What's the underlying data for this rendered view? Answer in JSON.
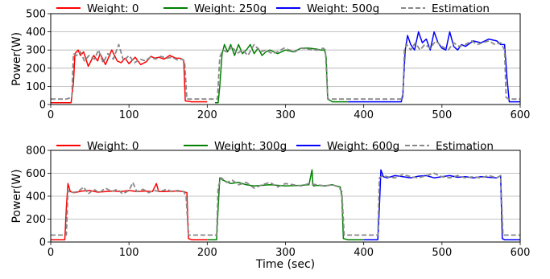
{
  "chart_data": [
    {
      "type": "line",
      "ylabel": "Power(W)",
      "xlabel": "",
      "xlim": [
        0,
        600
      ],
      "ylim": [
        0,
        500
      ],
      "xticks": [
        "0",
        "100",
        "200",
        "300",
        "400",
        "500",
        "600"
      ],
      "yticks": [
        "0",
        "100",
        "200",
        "300",
        "400",
        "500"
      ],
      "grid": "horizontal",
      "legend_position": "top",
      "series": [
        {
          "name": "Weight: 0",
          "color": "#ff0000",
          "style": "solid",
          "x": [
            0,
            26,
            29,
            31,
            35,
            38,
            42,
            48,
            55,
            60,
            63,
            70,
            78,
            85,
            90,
            95,
            100,
            108,
            115,
            122,
            128,
            133,
            138,
            145,
            152,
            160,
            165,
            168,
            170,
            172,
            180,
            200
          ],
          "y": [
            10,
            10,
            120,
            280,
            300,
            270,
            290,
            210,
            270,
            240,
            280,
            220,
            300,
            240,
            230,
            255,
            225,
            260,
            220,
            235,
            265,
            255,
            260,
            250,
            270,
            255,
            255,
            250,
            240,
            20,
            15,
            15
          ]
        },
        {
          "name": "Weight: 250g",
          "color": "#008000",
          "style": "solid",
          "x": [
            210,
            214,
            216,
            219,
            222,
            226,
            230,
            235,
            240,
            245,
            250,
            255,
            260,
            265,
            270,
            275,
            280,
            290,
            300,
            310,
            320,
            330,
            340,
            345,
            350,
            352,
            354,
            360,
            380
          ],
          "y": [
            10,
            10,
            100,
            280,
            330,
            290,
            330,
            270,
            330,
            280,
            300,
            330,
            280,
            310,
            270,
            290,
            300,
            280,
            300,
            290,
            310,
            310,
            305,
            300,
            300,
            260,
            30,
            15,
            15
          ]
        },
        {
          "name": "Weight: 500g",
          "color": "#0000ff",
          "style": "solid",
          "x": [
            380,
            400,
            420,
            440,
            448,
            450,
            453,
            456,
            460,
            465,
            470,
            475,
            480,
            485,
            490,
            495,
            500,
            505,
            510,
            515,
            520,
            525,
            530,
            540,
            550,
            560,
            570,
            575,
            580,
            583,
            586,
            600
          ],
          "y": [
            15,
            15,
            15,
            15,
            15,
            60,
            300,
            380,
            330,
            300,
            400,
            340,
            360,
            300,
            400,
            340,
            310,
            300,
            400,
            320,
            300,
            330,
            320,
            350,
            340,
            360,
            350,
            330,
            330,
            150,
            15,
            15
          ]
        },
        {
          "name": "Estimation",
          "color": "#888888",
          "style": "dashed",
          "x": [
            0,
            20,
            27,
            29,
            33,
            38,
            43,
            49,
            56,
            61,
            67,
            73,
            80,
            87,
            93,
            100,
            107,
            114,
            121,
            127,
            134,
            141,
            148,
            155,
            162,
            168,
            171,
            174,
            190,
            200,
            210,
            213,
            216,
            220,
            225,
            232,
            238,
            245,
            252,
            260,
            268,
            275,
            283,
            290,
            298,
            305,
            312,
            320,
            328,
            335,
            342,
            348,
            351,
            354,
            370,
            390,
            410,
            430,
            445,
            450,
            452,
            455,
            460,
            466,
            472,
            478,
            485,
            492,
            500,
            508,
            515,
            522,
            530,
            538,
            545,
            552,
            560,
            568,
            575,
            580,
            582,
            585,
            600
          ],
          "y": [
            30,
            30,
            40,
            280,
            270,
            290,
            240,
            270,
            250,
            300,
            230,
            280,
            250,
            330,
            240,
            270,
            230,
            250,
            240,
            260,
            250,
            265,
            255,
            260,
            245,
            250,
            240,
            30,
            30,
            30,
            30,
            30,
            260,
            300,
            290,
            320,
            280,
            300,
            270,
            330,
            290,
            300,
            280,
            290,
            310,
            300,
            290,
            310,
            305,
            300,
            300,
            310,
            300,
            30,
            30,
            30,
            30,
            30,
            30,
            30,
            300,
            330,
            300,
            340,
            300,
            330,
            310,
            350,
            320,
            300,
            340,
            320,
            330,
            350,
            330,
            340,
            350,
            330,
            340,
            300,
            40,
            30,
            30
          ]
        }
      ]
    },
    {
      "type": "line",
      "ylabel": "Power(W)",
      "xlabel": "Time (sec)",
      "xlim": [
        0,
        600
      ],
      "ylim": [
        0,
        800
      ],
      "xticks": [
        "0",
        "100",
        "200",
        "300",
        "400",
        "500",
        "600"
      ],
      "yticks": [
        "0",
        "200",
        "400",
        "600",
        "800"
      ],
      "grid": "horizontal",
      "legend_position": "top",
      "series": [
        {
          "name": "Weight: 0",
          "color": "#ff0000",
          "style": "solid",
          "x": [
            0,
            18,
            20,
            22,
            25,
            30,
            40,
            50,
            60,
            70,
            80,
            90,
            100,
            110,
            120,
            130,
            135,
            138,
            145,
            160,
            170,
            174,
            176,
            180,
            200
          ],
          "y": [
            20,
            20,
            300,
            510,
            440,
            430,
            445,
            450,
            435,
            440,
            445,
            440,
            450,
            440,
            445,
            440,
            510,
            440,
            440,
            445,
            440,
            430,
            30,
            20,
            20
          ]
        },
        {
          "name": "Weight: 300g",
          "color": "#008000",
          "style": "solid",
          "x": [
            200,
            212,
            214,
            216,
            220,
            230,
            240,
            250,
            260,
            280,
            300,
            320,
            330,
            334,
            335,
            336,
            340,
            350,
            360,
            370,
            372,
            374,
            380,
            400
          ],
          "y": [
            20,
            20,
            300,
            560,
            540,
            510,
            520,
            500,
            490,
            500,
            490,
            495,
            500,
            630,
            500,
            490,
            495,
            490,
            500,
            480,
            400,
            30,
            20,
            20
          ]
        },
        {
          "name": "Weight: 600g",
          "color": "#0000ff",
          "style": "solid",
          "x": [
            400,
            418,
            420,
            422,
            425,
            430,
            440,
            450,
            460,
            470,
            480,
            490,
            500,
            510,
            520,
            530,
            540,
            550,
            560,
            570,
            575,
            577,
            580,
            600
          ],
          "y": [
            20,
            20,
            300,
            630,
            570,
            560,
            580,
            570,
            560,
            575,
            580,
            560,
            570,
            580,
            565,
            570,
            560,
            570,
            565,
            560,
            580,
            30,
            20,
            20
          ]
        },
        {
          "name": "Estimation",
          "color": "#888888",
          "style": "dashed",
          "x": [
            0,
            20,
            22,
            26,
            35,
            42,
            48,
            55,
            62,
            70,
            78,
            85,
            92,
            100,
            105,
            110,
            118,
            125,
            132,
            140,
            148,
            155,
            162,
            170,
            173,
            176,
            195,
            212,
            214,
            218,
            225,
            232,
            240,
            250,
            260,
            270,
            280,
            290,
            300,
            310,
            320,
            330,
            340,
            350,
            360,
            368,
            372,
            375,
            395,
            418,
            420,
            424,
            430,
            440,
            450,
            460,
            470,
            480,
            490,
            500,
            510,
            520,
            530,
            540,
            550,
            560,
            570,
            575,
            578,
            600
          ],
          "y": [
            60,
            60,
            450,
            430,
            440,
            480,
            420,
            460,
            430,
            470,
            440,
            460,
            420,
            450,
            520,
            440,
            460,
            430,
            450,
            440,
            460,
            440,
            450,
            440,
            400,
            60,
            60,
            60,
            480,
            560,
            520,
            540,
            500,
            520,
            470,
            500,
            520,
            480,
            510,
            500,
            490,
            510,
            500,
            490,
            500,
            480,
            440,
            60,
            60,
            60,
            560,
            580,
            570,
            560,
            590,
            570,
            560,
            580,
            600,
            570,
            560,
            580,
            560,
            570,
            560,
            580,
            560,
            580,
            60,
            60
          ]
        }
      ]
    }
  ]
}
